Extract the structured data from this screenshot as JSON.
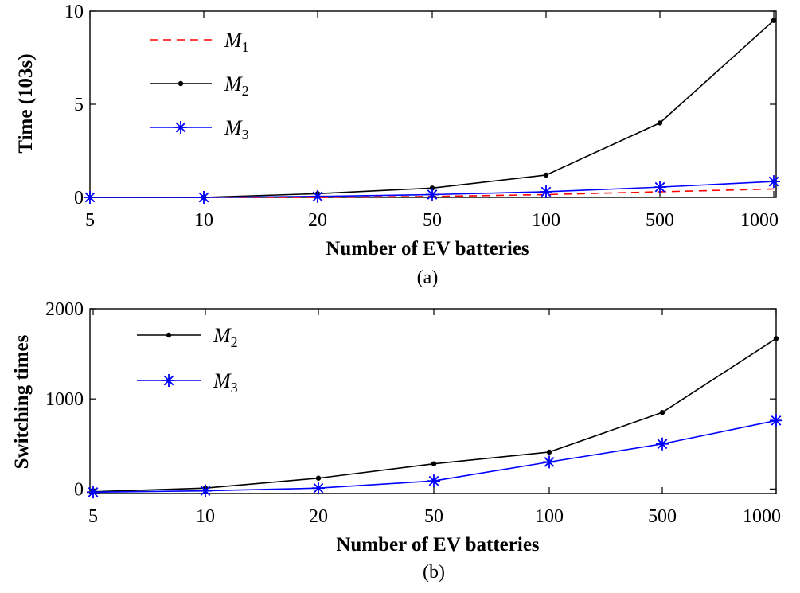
{
  "chart_data": [
    {
      "type": "line",
      "caption": "(a)",
      "xlabel": "Number of EV batteries",
      "ylabel": "Time (103s)",
      "categories": [
        "5",
        "10",
        "20",
        "50",
        "100",
        "500",
        "1000"
      ],
      "yticks": [
        "0",
        "5",
        "10"
      ],
      "ylim": [
        0,
        10
      ],
      "legend_position": "top-left",
      "series": [
        {
          "name": "M",
          "subscript": "1",
          "color": "#ff0000",
          "style": "dashed",
          "marker": "none",
          "values": [
            0,
            0,
            0,
            0.05,
            0.15,
            0.3,
            0.45
          ]
        },
        {
          "name": "M",
          "subscript": "2",
          "color": "#000000",
          "style": "solid",
          "marker": "dot",
          "values": [
            0,
            0,
            0.2,
            0.5,
            1.2,
            4.0,
            9.5
          ]
        },
        {
          "name": "M",
          "subscript": "3",
          "color": "#0000ff",
          "style": "solid",
          "marker": "star",
          "values": [
            0,
            0,
            0.05,
            0.15,
            0.3,
            0.55,
            0.85
          ]
        }
      ]
    },
    {
      "type": "line",
      "caption": "(b)",
      "xlabel": "Number of EV batteries",
      "ylabel": "Switching times",
      "categories": [
        "5",
        "10",
        "20",
        "50",
        "100",
        "500",
        "1000"
      ],
      "yticks": [
        "0",
        "1000",
        "2000"
      ],
      "ylim": [
        -50,
        2000
      ],
      "legend_position": "top-left",
      "series": [
        {
          "name": "M",
          "subscript": "2",
          "color": "#000000",
          "style": "solid",
          "marker": "dot",
          "values": [
            -30,
            10,
            120,
            280,
            410,
            850,
            1670
          ]
        },
        {
          "name": "M",
          "subscript": "3",
          "color": "#0000ff",
          "style": "solid",
          "marker": "star",
          "values": [
            -35,
            -20,
            10,
            90,
            300,
            500,
            760
          ]
        }
      ]
    }
  ]
}
